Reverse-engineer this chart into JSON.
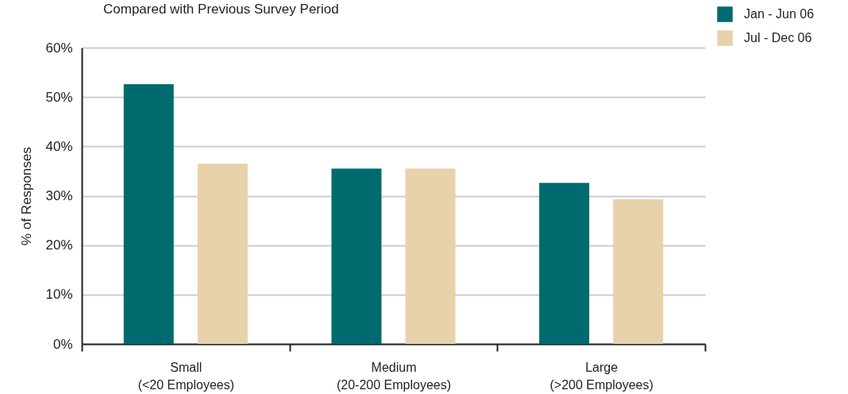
{
  "chart_data": {
    "type": "bar",
    "title": "Compared with Previous Survey Period",
    "ylabel": "% of Responses",
    "categories": [
      "Small\n(<20 Employees)",
      "Medium\n(20-200 Employees)",
      "Large\n(>200 Employees)"
    ],
    "series": [
      {
        "name": "Jan - Jun 06",
        "color": "#006b6e",
        "values": [
          52.6,
          35.5,
          32.6
        ]
      },
      {
        "name": "Jul - Dec 06",
        "color": "#e8d2ab",
        "values": [
          36.5,
          35.5,
          29.3
        ]
      }
    ],
    "ylim": [
      0,
      60
    ],
    "yticks": [
      {
        "value": 0,
        "label": "0%"
      },
      {
        "value": 10,
        "label": "10%"
      },
      {
        "value": 20,
        "label": "20%"
      },
      {
        "value": 30,
        "label": "30%"
      },
      {
        "value": 40,
        "label": "40%"
      },
      {
        "value": 50,
        "label": "50%"
      },
      {
        "value": 60,
        "label": "60%"
      }
    ],
    "grid": "y",
    "legend": "top right"
  }
}
